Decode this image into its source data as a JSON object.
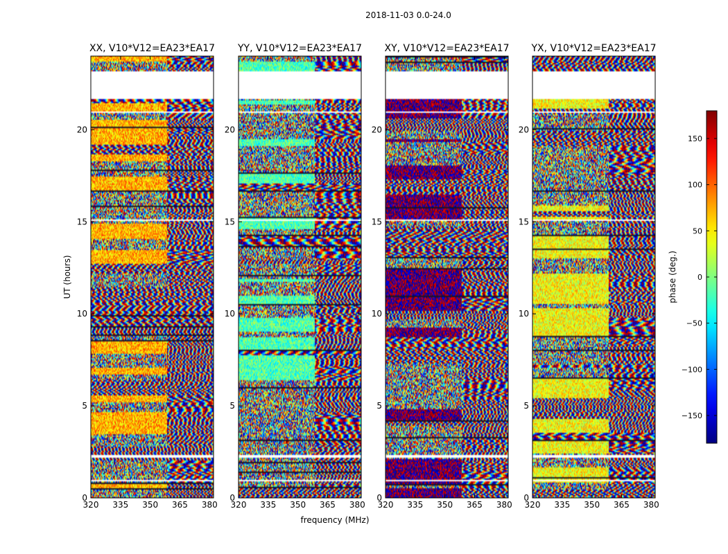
{
  "figure": {
    "suptitle": "2018-11-03 0.0-24.0"
  },
  "chart_data": {
    "type": "heatmap",
    "shared_ylabel": "UT (hours)",
    "shared_xlabel": "frequency (MHz)",
    "xlim": [
      320,
      382
    ],
    "ylim": [
      0,
      24
    ],
    "x_ticks": [
      320,
      335,
      350,
      365,
      380
    ],
    "y_ticks": [
      0,
      5,
      10,
      15,
      20
    ],
    "panels": [
      {
        "title": "XX, V10*V12=EA23*EA17",
        "seed": 11,
        "coherent_hue": 0.7
      },
      {
        "title": "YY, V10*V12=EA23*EA17",
        "seed": 23,
        "coherent_hue": 0.45
      },
      {
        "title": "XY, V10*V12=EA23*EA17",
        "seed": 37,
        "coherent_hue": 0.0
      },
      {
        "title": "YX, V10*V12=EA23*EA17",
        "seed": 51,
        "coherent_hue": 0.62
      }
    ],
    "colorbar": {
      "label": "phase (deg.)",
      "range": [
        -180,
        180
      ],
      "ticks": [
        150,
        100,
        50,
        0,
        -50,
        -100,
        -150
      ],
      "colormap": "jet"
    },
    "blank_hours": [
      [
        21.7,
        23.2
      ],
      [
        0.95,
        1.05
      ],
      [
        2.2,
        2.35
      ],
      [
        15.05,
        15.15
      ],
      [
        20.95,
        21.05
      ]
    ]
  }
}
